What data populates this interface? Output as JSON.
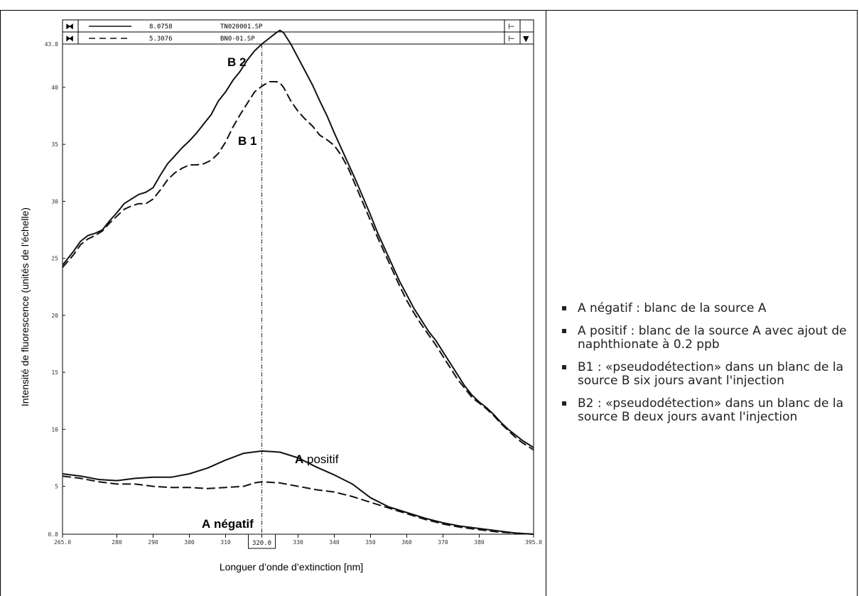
{
  "chart_data": {
    "type": "line",
    "xlabel": "Longuer d’onde d’extinction [nm]",
    "ylabel": "Intensité de fluorescence (unités de l’échelle)",
    "xlim": [
      265.0,
      395.0
    ],
    "ylim": [
      0.8,
      43.8
    ],
    "x_tick_labels": [
      "265.0",
      "280",
      "290",
      "300",
      "310",
      "320.0",
      "330",
      "340",
      "350",
      "360",
      "370",
      "380",
      "395.0"
    ],
    "x_ticks": [
      265,
      280,
      290,
      300,
      310,
      320,
      330,
      340,
      350,
      360,
      370,
      380,
      395
    ],
    "y_tick_labels": [
      "0.8",
      "5",
      "10",
      "15",
      "20",
      "25",
      "30",
      "35",
      "40",
      "43.8"
    ],
    "y_ticks": [
      0.8,
      5,
      10,
      15,
      20,
      25,
      30,
      35,
      40,
      43.8
    ],
    "cursor_x": 320,
    "legend": [
      {
        "style": "solid",
        "value": "8.0758",
        "file": "TN020001.SP"
      },
      {
        "style": "dashed",
        "value": "5.3076",
        "file": "BN0-01.SP"
      }
    ],
    "series": [
      {
        "label": "B 2",
        "style": "solid",
        "x": [
          265,
          268,
          270,
          272,
          274,
          276,
          278,
          280,
          282,
          284,
          286,
          288,
          290,
          292,
          294,
          296,
          298,
          300,
          302,
          304,
          306,
          308,
          310,
          312,
          314,
          316,
          318,
          320,
          322,
          324,
          325,
          326,
          328,
          330,
          332,
          334,
          336,
          338,
          340,
          342,
          344,
          346,
          348,
          350,
          352,
          354,
          356,
          358,
          360,
          362,
          364,
          366,
          368,
          370,
          372,
          374,
          376,
          378,
          380,
          382,
          384,
          386,
          388,
          390,
          392,
          395
        ],
        "y": [
          24.4,
          25.6,
          26.5,
          27.0,
          27.2,
          27.5,
          28.3,
          29.0,
          29.8,
          30.2,
          30.6,
          30.8,
          31.2,
          32.3,
          33.3,
          34.0,
          34.7,
          35.3,
          36.0,
          36.8,
          37.6,
          38.8,
          39.6,
          40.6,
          41.4,
          42.4,
          43.2,
          43.8,
          44.3,
          44.8,
          45.0,
          44.8,
          43.8,
          42.6,
          41.4,
          40.2,
          38.8,
          37.5,
          36.0,
          34.6,
          33.2,
          31.8,
          30.3,
          28.8,
          27.2,
          25.8,
          24.4,
          23.0,
          21.8,
          20.6,
          19.6,
          18.6,
          17.8,
          16.8,
          15.8,
          14.8,
          13.8,
          13.0,
          12.4,
          11.9,
          11.3,
          10.6,
          10.0,
          9.5,
          9.0,
          8.4
        ]
      },
      {
        "label": "B 1",
        "style": "dashed",
        "x": [
          265,
          268,
          270,
          272,
          274,
          276,
          278,
          280,
          282,
          284,
          286,
          288,
          290,
          292,
          294,
          296,
          298,
          300,
          302,
          304,
          306,
          308,
          310,
          312,
          314,
          316,
          318,
          320,
          322,
          324,
          325,
          326,
          328,
          330,
          332,
          334,
          336,
          338,
          340,
          342,
          344,
          346,
          348,
          350,
          352,
          354,
          356,
          358,
          360,
          362,
          364,
          366,
          368,
          370,
          372,
          374,
          376,
          378,
          380,
          382,
          384,
          386,
          388,
          390,
          392,
          395
        ],
        "y": [
          24.2,
          25.3,
          26.2,
          26.7,
          27.0,
          27.4,
          28.1,
          28.7,
          29.3,
          29.6,
          29.8,
          29.8,
          30.2,
          31.0,
          31.9,
          32.5,
          32.9,
          33.2,
          33.2,
          33.3,
          33.6,
          34.2,
          35.2,
          36.5,
          37.6,
          38.6,
          39.6,
          40.1,
          40.5,
          40.5,
          40.4,
          40.0,
          38.8,
          37.9,
          37.2,
          36.6,
          35.8,
          35.4,
          34.9,
          34.0,
          32.8,
          31.3,
          29.8,
          28.3,
          26.8,
          25.4,
          24.0,
          22.6,
          21.3,
          20.2,
          19.2,
          18.3,
          17.4,
          16.4,
          15.4,
          14.4,
          13.6,
          12.8,
          12.3,
          11.8,
          11.2,
          10.5,
          9.9,
          9.3,
          8.8,
          8.2
        ]
      },
      {
        "label": "A positif",
        "style": "solid",
        "x": [
          265,
          270,
          275,
          280,
          285,
          290,
          295,
          300,
          305,
          310,
          315,
          320,
          325,
          330,
          335,
          340,
          345,
          350,
          355,
          360,
          365,
          370,
          375,
          380,
          385,
          390,
          395
        ],
        "y": [
          6.1,
          5.9,
          5.6,
          5.5,
          5.7,
          5.8,
          5.8,
          6.1,
          6.6,
          7.3,
          7.9,
          8.1,
          8.0,
          7.5,
          6.7,
          6.0,
          5.2,
          4.0,
          3.2,
          2.7,
          2.2,
          1.8,
          1.5,
          1.3,
          1.1,
          0.9,
          0.8
        ]
      },
      {
        "label": "A négatif",
        "style": "dashed",
        "x": [
          265,
          270,
          275,
          280,
          285,
          290,
          295,
          300,
          305,
          310,
          315,
          318,
          320,
          325,
          330,
          335,
          340,
          345,
          350,
          355,
          360,
          365,
          370,
          375,
          380,
          385,
          390,
          395
        ],
        "y": [
          5.9,
          5.7,
          5.4,
          5.2,
          5.2,
          5.0,
          4.9,
          4.9,
          4.8,
          4.9,
          5.0,
          5.3,
          5.4,
          5.3,
          5.0,
          4.7,
          4.5,
          4.1,
          3.6,
          3.1,
          2.6,
          2.1,
          1.7,
          1.4,
          1.2,
          1.0,
          0.9,
          0.8
        ]
      }
    ]
  },
  "notes": [
    "A négatif : blanc de la source A",
    "A positif : blanc de la source A avec ajout de naphthionate à 0.2 ppb",
    "B1 : «pseudodétection» dans un blanc de la source B six jours avant l'injection",
    "B2 : «pseudodétection» dans un blanc de la source B deux jours avant l'injection"
  ],
  "colors": {
    "ink": "#111111",
    "frame": "#000000",
    "text": "#222222"
  }
}
